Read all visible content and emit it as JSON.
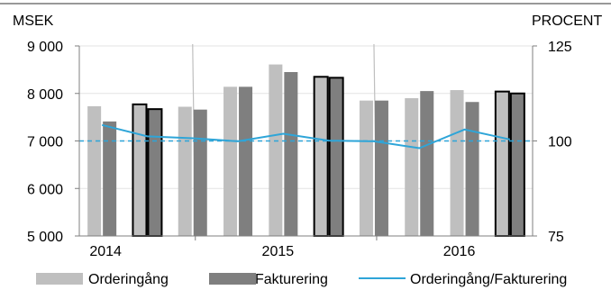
{
  "chart_data": {
    "type": "bar",
    "left_axis_unit": "MSEK",
    "right_axis_unit": "PROCENT",
    "y_left": {
      "min": 5000,
      "max": 9000,
      "ticks": [
        9000,
        8000,
        7000,
        6000,
        5000
      ],
      "tick_labels": [
        "9 000",
        "8 000",
        "7 000",
        "6 000",
        "5 000"
      ]
    },
    "y_right": {
      "min": 75,
      "max": 125,
      "ticks": [
        125,
        100,
        75
      ],
      "tick_labels": [
        "125",
        "100",
        "75"
      ]
    },
    "year_labels": [
      "2014",
      "2015",
      "2016"
    ],
    "quarters_per_year": 4,
    "series": [
      {
        "name": "Orderingång",
        "type": "bar",
        "values": [
          7730,
          7770,
          7720,
          8140,
          8610,
          8350,
          7850,
          7900,
          8070,
          8040
        ],
        "color": "#bfbfbf"
      },
      {
        "name": "Fakturering",
        "type": "bar",
        "values": [
          7410,
          7670,
          7660,
          8140,
          8450,
          8330,
          7850,
          8050,
          7820,
          8000
        ],
        "color": "#7f7f7f"
      },
      {
        "name": "Orderingång/Fakturering",
        "type": "line",
        "axis": "right",
        "values": [
          104.2,
          101.2,
          100.7,
          99.9,
          101.9,
          100.1,
          99.9,
          98.1,
          103.0,
          100.4
        ],
        "color": "#2ea5d8"
      }
    ],
    "highlighted_bar_indices": [
      1,
      5,
      9
    ],
    "reference_line": {
      "axis": "right",
      "value": 100,
      "style": "dashed",
      "color": "#2ea5d8"
    },
    "legend": [
      {
        "label": "Orderingång",
        "kind": "bar",
        "color": "#bfbfbf"
      },
      {
        "label": "Fakturering",
        "kind": "bar",
        "color": "#7f7f7f"
      },
      {
        "label": "Orderingång/Fakturering",
        "kind": "line",
        "color": "#2ea5d8"
      }
    ],
    "legend_position": "bottom"
  }
}
